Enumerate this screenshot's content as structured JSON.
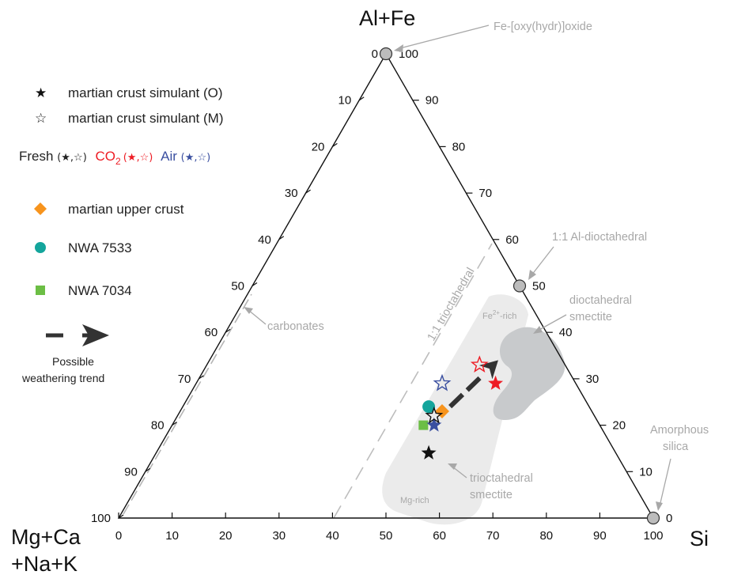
{
  "chart_data": {
    "type": "scatter",
    "subtype": "ternary",
    "apex_top": "Al+Fe",
    "apex_left_line1": "Mg+Ca",
    "apex_left_line2": "+Na+K",
    "apex_right": "Si",
    "left_ticks": [
      "0",
      "10",
      "20",
      "30",
      "40",
      "50",
      "60",
      "70",
      "80",
      "90",
      "100"
    ],
    "bottom_ticks": [
      "0",
      "10",
      "20",
      "30",
      "40",
      "50",
      "60",
      "70",
      "80",
      "90",
      "100"
    ],
    "right_ticks": [
      "100",
      "90",
      "80",
      "70",
      "60",
      "50",
      "40",
      "30",
      "20",
      "10",
      "0"
    ],
    "legend": {
      "star_filled_label": "martian crust simulant (O)",
      "star_open_label": "martian crust simulant (M)",
      "fresh_label": "Fresh",
      "co2_label": "CO",
      "co2_sub": "2",
      "air_label": "Air",
      "star_pair": "(★,☆)",
      "upper_crust_label": "martian upper crust",
      "nwa7533_label": "NWA 7533",
      "nwa7034_label": "NWA 7034",
      "trend_label_line1": "Possible",
      "trend_label_line2": "weathering trend"
    },
    "annotations": {
      "fe_oxide": "Fe-[oxy(hydr)]oxide",
      "al_dioct": "1:1 Al-dioctahedral",
      "dioct_smectite_1": "dioctahedral",
      "dioct_smectite_2": "smectite",
      "fe_rich": "Fe",
      "fe_rich_sup": "2+",
      "fe_rich_end": "-rich",
      "trioct_line": "1:1 trioctahedral",
      "carbonates": "carbonates",
      "amorphous_1": "Amorphous",
      "amorphous_2": "silica",
      "trioct_smectite_1": "trioctahedral",
      "trioct_smectite_2": "smectite",
      "mg_rich": "Mg-rich"
    },
    "reference_points": [
      {
        "name": "Fe-[oxy(hydr)]oxide",
        "si": 0,
        "alfe": 100
      },
      {
        "name": "1:1 Al-dioctahedral",
        "si": 50,
        "alfe": 50
      },
      {
        "name": "Amorphous silica",
        "si": 100,
        "alfe": 0
      }
    ],
    "series": [
      {
        "name": "martian crust simulant (O)",
        "condition": "Fresh",
        "marker": "star-filled",
        "color": "#111111",
        "si": 51,
        "alfe": 14
      },
      {
        "name": "martian crust simulant (M)",
        "condition": "Fresh",
        "marker": "star-open",
        "color": "#111111",
        "si": 48,
        "alfe": 22
      },
      {
        "name": "martian crust simulant (O)",
        "condition": "CO2",
        "marker": "star-filled",
        "color": "#ee1c24",
        "si": 56,
        "alfe": 29
      },
      {
        "name": "martian crust simulant (M)",
        "condition": "CO2",
        "marker": "star-open",
        "color": "#ee1c24",
        "si": 51,
        "alfe": 33
      },
      {
        "name": "martian crust simulant (O)",
        "condition": "Air",
        "marker": "star-filled",
        "color": "#3a4fa0",
        "si": 49,
        "alfe": 20
      },
      {
        "name": "martian crust simulant (M)",
        "condition": "Air",
        "marker": "star-open",
        "color": "#3a4fa0",
        "si": 46,
        "alfe": 29
      },
      {
        "name": "martian upper crust",
        "marker": "diamond",
        "color": "#f7941d",
        "si": 49,
        "alfe": 23
      },
      {
        "name": "NWA 7533",
        "marker": "circle",
        "color": "#14a59c",
        "si": 46,
        "alfe": 24
      },
      {
        "name": "NWA 7034",
        "marker": "square",
        "color": "#6cbe45",
        "si": 47,
        "alfe": 20
      }
    ],
    "trend_arrow": {
      "from": {
        "si": 50,
        "alfe": 24
      },
      "to": {
        "si": 54,
        "alfe": 34
      }
    },
    "colors": {
      "trio_region": "#ebebeb",
      "dio_region": "#c8cacc",
      "annotation": "#a8a8a8",
      "arrow": "#333333"
    }
  }
}
